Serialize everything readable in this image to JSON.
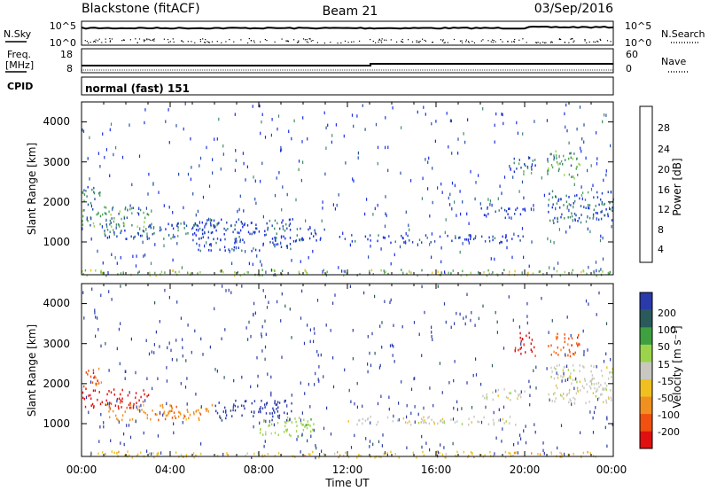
{
  "header": {
    "station": "Blackstone (fitACF)",
    "beam": "Beam 21",
    "date": "03/Sep/2016"
  },
  "noise_panel": {
    "left_label": "N.Sky",
    "right_label": "N.Search",
    "left_ticks": [
      "10^5",
      "10^0"
    ],
    "right_ticks": [
      "10^5",
      "10^0"
    ]
  },
  "freq_panel": {
    "left_label_1": "Freq.",
    "left_label_2": "[MHz]",
    "left_ticks": [
      "18",
      "8"
    ],
    "right_label": "Nave",
    "right_ticks": [
      "60",
      "0"
    ]
  },
  "cpid_panel": {
    "label": "CPID",
    "text": "normal (fast) 151"
  },
  "colors": {
    "power": [
      "#1a2ee6",
      "#2550a8",
      "#3f8a6a",
      "#5aaa5a",
      "#9bd44a",
      "#f0c020",
      "#f09020",
      "#f05010",
      "#e01010"
    ],
    "velocity": [
      "#e01010",
      "#f05010",
      "#f09020",
      "#f0c020",
      "#c8c8c0",
      "#9bd44a",
      "#3fa040",
      "#2a5a5a",
      "#2a3aaa"
    ]
  },
  "chart_data": [
    {
      "type": "heatmap",
      "panel": "power",
      "ylabel": "Slant Range [km]",
      "yticks": [
        "4000",
        "3000",
        "2000",
        "1000"
      ],
      "ylim": [
        180,
        4500
      ],
      "xlim": [
        0,
        24
      ],
      "colorbar_label": "Power [dB]",
      "colorbar_ticks": [
        "28",
        "24",
        "20",
        "16",
        "12",
        "8",
        "4"
      ],
      "colorbar_range": [
        0,
        32
      ],
      "regions": [
        {
          "t0": 0.0,
          "t1": 0.9,
          "r0": 1900,
          "r1": 2400,
          "level": 10
        },
        {
          "t0": 0.0,
          "t1": 3.0,
          "r0": 1400,
          "r1": 1900,
          "level": 12
        },
        {
          "t0": 1.0,
          "t1": 6.0,
          "r0": 1100,
          "r1": 1500,
          "level": 9
        },
        {
          "t0": 5.0,
          "t1": 9.5,
          "r0": 800,
          "r1": 1600,
          "level": 7
        },
        {
          "t0": 9.5,
          "t1": 11.0,
          "r0": 1000,
          "r1": 1400,
          "level": 6
        },
        {
          "t0": 11.5,
          "t1": 20.0,
          "r0": 1000,
          "r1": 1200,
          "level": 6
        },
        {
          "t0": 18.0,
          "t1": 20.0,
          "r0": 1600,
          "r1": 1900,
          "level": 6
        },
        {
          "t0": 19.5,
          "t1": 20.5,
          "r0": 2700,
          "r1": 3200,
          "level": 8
        },
        {
          "t0": 21.0,
          "t1": 22.5,
          "r0": 2600,
          "r1": 3300,
          "level": 14
        },
        {
          "t0": 21.0,
          "t1": 24.0,
          "r0": 1500,
          "r1": 2300,
          "level": 11
        },
        {
          "t0": 0.0,
          "t1": 24.0,
          "r0": 180,
          "r1": 330,
          "level": 16
        }
      ]
    },
    {
      "type": "heatmap",
      "panel": "velocity",
      "xlabel": "Time UT",
      "ylabel": "Slant Range [km]",
      "xticks": [
        "00:00",
        "04:00",
        "08:00",
        "12:00",
        "16:00",
        "20:00",
        "00:00"
      ],
      "yticks": [
        "4000",
        "3000",
        "2000",
        "1000"
      ],
      "ylim": [
        180,
        4500
      ],
      "xlim": [
        0,
        24
      ],
      "colorbar_label": "Velocity [m s⁻¹]",
      "colorbar_ticks": [
        "200",
        "100",
        "50",
        "15",
        "-15",
        "-50",
        "-100",
        "-200"
      ],
      "regions": [
        {
          "t0": 0.0,
          "t1": 0.9,
          "r0": 1900,
          "r1": 2400,
          "class": 1
        },
        {
          "t0": 0.0,
          "t1": 3.0,
          "r0": 1400,
          "r1": 1900,
          "class": 0
        },
        {
          "t0": 1.0,
          "t1": 6.0,
          "r0": 1100,
          "r1": 1500,
          "class": 2
        },
        {
          "t0": 6.0,
          "t1": 9.5,
          "r0": 1100,
          "r1": 1600,
          "class": 8
        },
        {
          "t0": 8.0,
          "t1": 10.5,
          "r0": 700,
          "r1": 1200,
          "class": 5
        },
        {
          "t0": 12.0,
          "t1": 20.0,
          "r0": 1000,
          "r1": 1200,
          "class": 4
        },
        {
          "t0": 18.0,
          "t1": 20.0,
          "r0": 1600,
          "r1": 1900,
          "class": 4
        },
        {
          "t0": 19.5,
          "t1": 20.5,
          "r0": 2700,
          "r1": 3300,
          "class": 0
        },
        {
          "t0": 21.0,
          "t1": 22.5,
          "r0": 2700,
          "r1": 3300,
          "class": 1
        },
        {
          "t0": 21.0,
          "t1": 24.0,
          "r0": 1500,
          "r1": 2500,
          "class": 4
        },
        {
          "t0": 0.0,
          "t1": 24.0,
          "r0": 180,
          "r1": 330,
          "class": 3
        }
      ]
    }
  ]
}
